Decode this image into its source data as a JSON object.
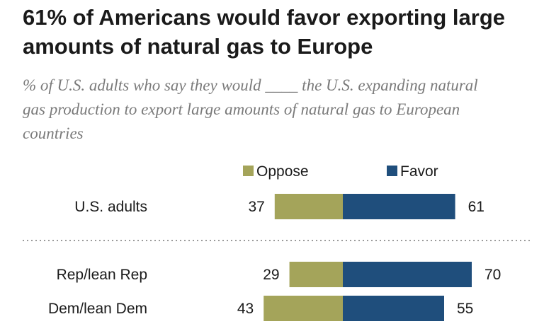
{
  "title": "61% of Americans would favor exporting large amounts of natural gas to Europe",
  "subtitle": "% of U.S. adults who say they would ____ the U.S. expanding natural gas production to export large amounts of natural gas to European countries",
  "chart_data": {
    "type": "bar",
    "orientation": "horizontal-diverging",
    "categories": [
      "U.S. adults",
      "Rep/lean Rep",
      "Dem/lean Dem"
    ],
    "series": [
      {
        "name": "Oppose",
        "values": [
          37,
          29,
          43
        ],
        "color": "#a4a45a"
      },
      {
        "name": "Favor",
        "values": [
          61,
          70,
          55
        ],
        "color": "#1f4e7c"
      }
    ],
    "legend_placement": "top",
    "grid": false
  }
}
